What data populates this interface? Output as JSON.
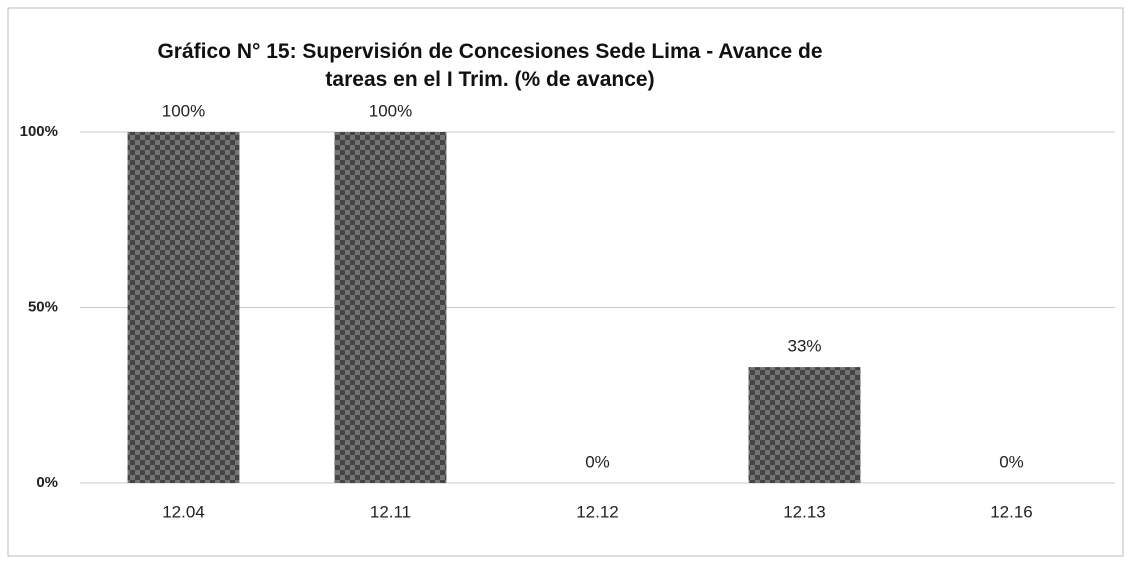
{
  "chart_data": {
    "type": "bar",
    "title": "Gráfico N° 15:  Supervisión de Concesiones Sede Lima - Avance de tareas en el I Trim. (% de avance)",
    "categories": [
      "12.04",
      "12.11",
      "12.12",
      "12.13",
      "12.16"
    ],
    "values": [
      100,
      100,
      0,
      33,
      0
    ],
    "value_labels": [
      "100%",
      "100%",
      "0%",
      "33%",
      "0%"
    ],
    "color": "#5a5a5a",
    "ylim": [
      0,
      100
    ],
    "yticks": [
      {
        "value": 0,
        "label": "0%"
      },
      {
        "value": 50,
        "label": "50%"
      },
      {
        "value": 100,
        "label": "100%"
      }
    ],
    "grid": true
  }
}
